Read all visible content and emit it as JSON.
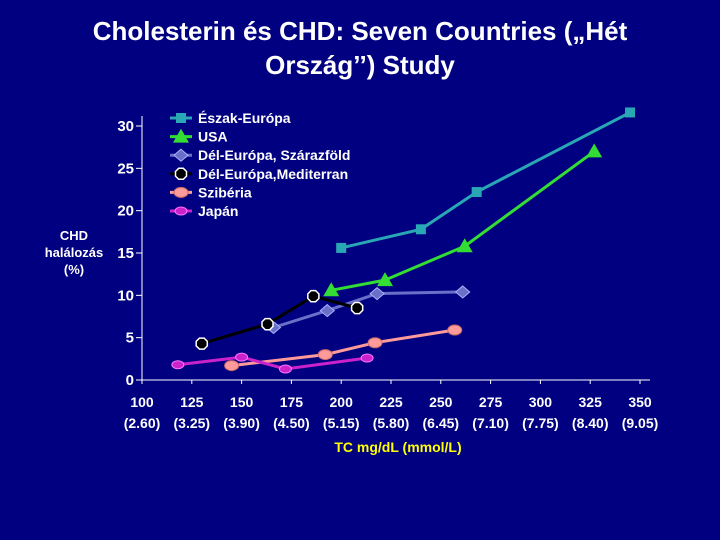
{
  "title_line1": "Cholesterin és CHD: Seven Countries („Hét",
  "title_line2": "Ország’’) Study",
  "chart_data": {
    "type": "line",
    "title": "Cholesterin és CHD: Seven Countries („Hét Ország’’) Study",
    "ylabel_lines": [
      "CHD",
      "halálozás",
      "(%)"
    ],
    "xlabel": "TC mg/dL (mmol/L)",
    "ylim": [
      0,
      30
    ],
    "yticks": [
      0,
      5,
      10,
      15,
      20,
      25,
      30
    ],
    "xlim": [
      100,
      350
    ],
    "xticks": [
      100,
      125,
      150,
      175,
      200,
      225,
      250,
      275,
      300,
      325,
      350
    ],
    "xtick_labels_mg": [
      "100",
      "125",
      "150",
      "175",
      "200",
      "225",
      "250",
      "275",
      "300",
      "325",
      "350"
    ],
    "xtick_labels_mmol": [
      "(2.60)",
      "(3.25)",
      "(3.90)",
      "(4.50)",
      "(5.15)",
      "(5.80)",
      "(6.45)",
      "(7.10)",
      "(7.75)",
      "(8.40)",
      "(9.05)"
    ],
    "legend_position": "top",
    "series": [
      {
        "name": "Észak-Európa",
        "color": "#2aa7b5",
        "marker": "square",
        "x": [
          200,
          240,
          268,
          345
        ],
        "y": [
          15.6,
          17.8,
          22.2,
          31.6
        ]
      },
      {
        "name": "USA",
        "color": "#33dd33",
        "marker": "triangle",
        "x": [
          195,
          222,
          262,
          327
        ],
        "y": [
          10.6,
          11.8,
          15.8,
          27.0
        ]
      },
      {
        "name": "Dél-Európa, Szárazföld",
        "color": "#6870c8",
        "marker": "diamond",
        "x": [
          166,
          193,
          218,
          261
        ],
        "y": [
          6.2,
          8.2,
          10.2,
          10.4
        ]
      },
      {
        "name": "Dél-Európa,Mediterran",
        "color": "#000000",
        "marker": "octagon",
        "x": [
          130,
          163,
          186,
          208
        ],
        "y": [
          4.3,
          6.6,
          9.9,
          8.5
        ]
      },
      {
        "name": "Szibéria",
        "color": "#ff9a9a",
        "marker": "circle",
        "x": [
          145,
          192,
          217,
          257
        ],
        "y": [
          1.7,
          3.0,
          4.4,
          5.9
        ]
      },
      {
        "name": "Japán",
        "color": "#cc22cc",
        "marker": "circle-small",
        "x": [
          118,
          150,
          172,
          213
        ],
        "y": [
          1.8,
          2.7,
          1.3,
          2.6
        ]
      }
    ]
  }
}
